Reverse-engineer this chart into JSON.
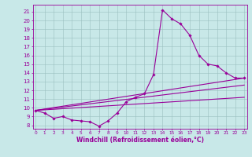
{
  "background_color": "#c8e8e8",
  "line_color": "#990099",
  "marker": "D",
  "markersize": 1.8,
  "linewidth": 0.8,
  "xlabel": "Windchill (Refroidissement éolien,°C)",
  "xlabel_fontsize": 5.5,
  "ytick_fontsize": 5.0,
  "xtick_fontsize": 4.2,
  "yticks": [
    8,
    9,
    10,
    11,
    12,
    13,
    14,
    15,
    16,
    17,
    18,
    19,
    20,
    21
  ],
  "xticks": [
    0,
    1,
    2,
    3,
    4,
    5,
    6,
    7,
    8,
    9,
    10,
    11,
    12,
    13,
    14,
    15,
    16,
    17,
    18,
    19,
    20,
    21,
    22,
    23
  ],
  "xlim": [
    -0.3,
    23.3
  ],
  "ylim": [
    7.6,
    21.8
  ],
  "grid_color": "#9bbfbf",
  "grid_linewidth": 0.4,
  "series": [
    {
      "x": [
        0,
        1,
        2,
        3,
        4,
        5,
        6,
        7,
        8,
        9,
        10,
        11,
        12,
        13,
        14,
        15,
        16,
        17,
        18,
        19,
        20,
        21,
        22,
        23
      ],
      "y": [
        9.7,
        9.4,
        8.8,
        9.0,
        8.6,
        8.5,
        8.4,
        7.9,
        8.5,
        9.4,
        10.7,
        11.2,
        11.6,
        13.8,
        21.2,
        20.2,
        19.6,
        18.3,
        16.0,
        15.0,
        14.8,
        14.0,
        13.4,
        13.4
      ],
      "has_marker": true
    },
    {
      "x": [
        0,
        23
      ],
      "y": [
        9.7,
        13.4
      ],
      "has_marker": false
    },
    {
      "x": [
        0,
        23
      ],
      "y": [
        9.7,
        12.6
      ],
      "has_marker": false
    },
    {
      "x": [
        0,
        23
      ],
      "y": [
        9.7,
        11.2
      ],
      "has_marker": false
    }
  ]
}
